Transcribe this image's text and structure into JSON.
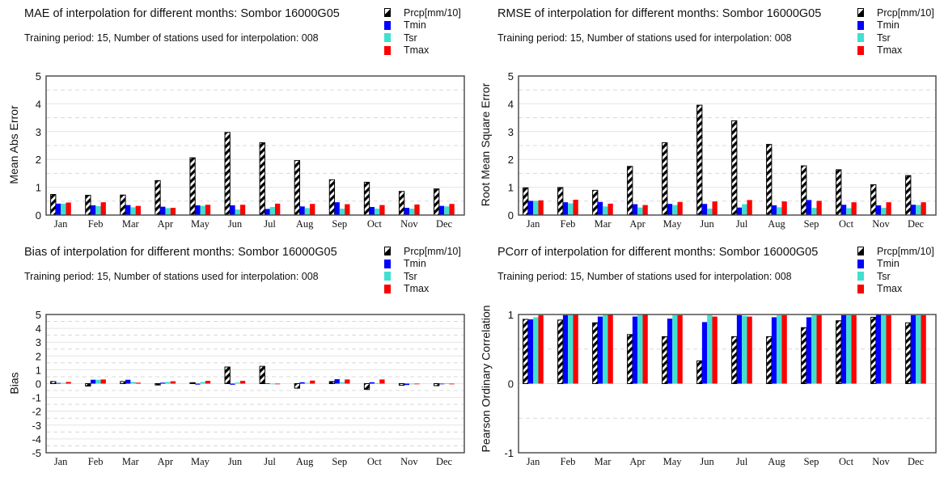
{
  "colors": {
    "Prcp[mm/10]": "#000000",
    "Tmin": "#0000ff",
    "Tsr": "#40e0d0",
    "Tmax": "#ff0000"
  },
  "chart_data": [
    {
      "type": "bar",
      "id": "mae",
      "title": "MAE of interpolation for different months: Sombor  16000G05",
      "subtitle": "Training period: 15, Number of stations used for interpolation: 008",
      "xlabel": "",
      "ylabel": "Mean Abs Error",
      "ylim": [
        0,
        5
      ],
      "yticks": [
        "0",
        "1",
        "2",
        "3",
        "4",
        "5"
      ],
      "ytick_values": [
        0,
        1,
        2,
        3,
        4,
        5
      ],
      "grid_minor": [
        0.5,
        1.5,
        2.5,
        3.5,
        4.5
      ],
      "grid": true,
      "legend_position": "top-right",
      "categories": [
        "Jan",
        "Feb",
        "Mar",
        "Apr",
        "May",
        "Jun",
        "Jul",
        "Aug",
        "Sep",
        "Oct",
        "Nov",
        "Dec"
      ],
      "series": [
        {
          "name": "Prcp[mm/10]",
          "values": [
            0.74,
            0.71,
            0.72,
            1.24,
            2.06,
            2.97,
            2.6,
            1.96,
            1.27,
            1.18,
            0.85,
            0.94
          ]
        },
        {
          "name": "Tmin",
          "values": [
            0.41,
            0.35,
            0.36,
            0.3,
            0.35,
            0.35,
            0.22,
            0.31,
            0.46,
            0.29,
            0.26,
            0.33
          ]
        },
        {
          "name": "Tsr",
          "values": [
            0.41,
            0.32,
            0.28,
            0.25,
            0.33,
            0.2,
            0.29,
            0.25,
            0.23,
            0.23,
            0.23,
            0.31
          ]
        },
        {
          "name": "Tmax",
          "values": [
            0.45,
            0.46,
            0.33,
            0.26,
            0.37,
            0.37,
            0.41,
            0.4,
            0.39,
            0.36,
            0.38,
            0.4
          ]
        }
      ]
    },
    {
      "type": "bar",
      "id": "rmse",
      "title": "RMSE of interpolation for different months: Sombor  16000G05",
      "subtitle": "Training period: 15, Number of stations used for interpolation: 008",
      "xlabel": "",
      "ylabel": "Root Mean Square Error",
      "ylim": [
        0,
        5
      ],
      "yticks": [
        "0",
        "1",
        "2",
        "3",
        "4",
        "5"
      ],
      "ytick_values": [
        0,
        1,
        2,
        3,
        4,
        5
      ],
      "grid_minor": [
        0.5,
        1.5,
        2.5,
        3.5,
        4.5
      ],
      "grid": true,
      "legend_position": "top-right",
      "categories": [
        "Jan",
        "Feb",
        "Mar",
        "Apr",
        "May",
        "Jun",
        "Jul",
        "Aug",
        "Sep",
        "Oct",
        "Nov",
        "Dec"
      ],
      "series": [
        {
          "name": "Prcp[mm/10]",
          "values": [
            0.98,
            0.99,
            0.89,
            1.75,
            2.6,
            3.95,
            3.39,
            2.54,
            1.77,
            1.63,
            1.09,
            1.42
          ]
        },
        {
          "name": "Tmin",
          "values": [
            0.51,
            0.46,
            0.47,
            0.39,
            0.4,
            0.4,
            0.27,
            0.35,
            0.54,
            0.37,
            0.35,
            0.37
          ]
        },
        {
          "name": "Tsr",
          "values": [
            0.51,
            0.42,
            0.31,
            0.27,
            0.36,
            0.23,
            0.39,
            0.28,
            0.26,
            0.25,
            0.26,
            0.36
          ]
        },
        {
          "name": "Tmax",
          "values": [
            0.53,
            0.55,
            0.41,
            0.36,
            0.47,
            0.49,
            0.54,
            0.49,
            0.51,
            0.46,
            0.46,
            0.46
          ]
        }
      ]
    },
    {
      "type": "bar",
      "id": "bias",
      "title": "Bias of interpolation for different months: Sombor  16000G05",
      "subtitle": "Training period: 15, Number of stations used for interpolation: 008",
      "xlabel": "",
      "ylabel": "Bias",
      "ylim": [
        -5,
        5
      ],
      "yticks": [
        "-5",
        "-4",
        "-3",
        "-2",
        "-1",
        "0",
        "1",
        "2",
        "3",
        "4",
        "5"
      ],
      "ytick_values": [
        -5,
        -4,
        -3,
        -2,
        -1,
        0,
        1,
        2,
        3,
        4,
        5
      ],
      "grid_minor": [
        -4.5,
        -3.5,
        -2.5,
        -1.5,
        -0.5,
        0.5,
        1.5,
        2.5,
        3.5,
        4.5
      ],
      "grid": true,
      "legend_position": "top-right",
      "categories": [
        "Jan",
        "Feb",
        "Mar",
        "Apr",
        "May",
        "Jun",
        "Jul",
        "Aug",
        "Sep",
        "Oct",
        "Nov",
        "Dec"
      ],
      "series": [
        {
          "name": "Prcp[mm/10]",
          "values": [
            0.15,
            -0.18,
            0.15,
            -0.1,
            0.07,
            1.2,
            1.25,
            -0.33,
            0.15,
            -0.42,
            -0.12,
            -0.15
          ]
        },
        {
          "name": "Tmin",
          "values": [
            0.05,
            0.28,
            0.28,
            0.07,
            -0.07,
            -0.08,
            0.02,
            0.1,
            0.32,
            0.1,
            -0.1,
            -0.03
          ]
        },
        {
          "name": "Tsr",
          "values": [
            0.05,
            0.28,
            0.12,
            0.12,
            0.12,
            0.08,
            -0.03,
            0.05,
            0.1,
            0.03,
            -0.03,
            0.02
          ]
        },
        {
          "name": "Tmax",
          "values": [
            0.12,
            0.3,
            0.07,
            0.17,
            0.2,
            0.2,
            -0.03,
            0.22,
            0.3,
            0.3,
            -0.03,
            -0.05
          ]
        }
      ]
    },
    {
      "type": "bar",
      "id": "pcorr",
      "title": "PCorr of interpolation for different months: Sombor  16000G05",
      "subtitle": "Training period: 15, Number of stations used for interpolation: 008",
      "xlabel": "",
      "ylabel": "Pearson Ordinary Correlation",
      "ylim": [
        -1,
        1
      ],
      "yticks": [
        "-1",
        "0",
        "1"
      ],
      "ytick_values": [
        -1,
        0,
        1
      ],
      "grid_minor": [
        -0.5,
        0.5
      ],
      "grid": true,
      "legend_position": "top-right",
      "categories": [
        "Jan",
        "Feb",
        "Mar",
        "Apr",
        "May",
        "Jun",
        "Jul",
        "Aug",
        "Sep",
        "Oct",
        "Nov",
        "Dec"
      ],
      "series": [
        {
          "name": "Prcp[mm/10]",
          "values": [
            0.93,
            0.92,
            0.88,
            0.71,
            0.68,
            0.33,
            0.68,
            0.68,
            0.81,
            0.91,
            0.96,
            0.88
          ]
        },
        {
          "name": "Tmin",
          "values": [
            0.93,
            0.99,
            0.97,
            0.97,
            0.94,
            0.89,
            0.99,
            0.96,
            0.96,
            0.99,
            1.0,
            0.99
          ]
        },
        {
          "name": "Tsr",
          "values": [
            0.96,
            1.0,
            0.99,
            0.99,
            0.99,
            0.99,
            0.98,
            0.99,
            0.99,
            0.99,
            0.99,
            0.99
          ]
        },
        {
          "name": "Tmax",
          "values": [
            0.99,
            1.0,
            1.0,
            1.0,
            0.99,
            0.97,
            0.97,
            0.99,
            0.99,
            0.99,
            0.99,
            0.99
          ]
        }
      ]
    }
  ]
}
